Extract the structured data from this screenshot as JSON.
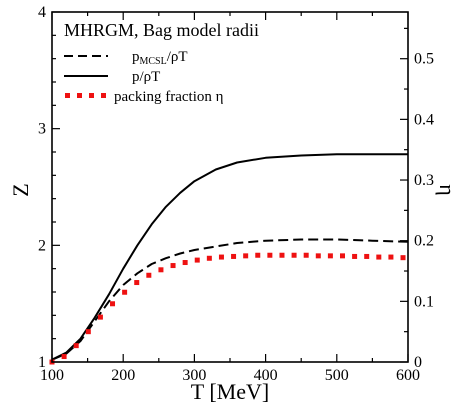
{
  "chart_data": {
    "type": "line",
    "title": "MHRGM, Bag model radii",
    "xlabel": "T [MeV]",
    "ylabel": "Z",
    "y2label": "η",
    "xlim": [
      100,
      600
    ],
    "ylim": [
      1,
      4
    ],
    "y2lim": [
      0,
      0.577
    ],
    "xticks": [
      "100",
      "200",
      "300",
      "400",
      "500",
      "600"
    ],
    "yticks": [
      "1",
      "2",
      "3",
      "4"
    ],
    "y2ticks": [
      "0",
      "0.1",
      "0.2",
      "0.3",
      "0.4",
      "0.5"
    ],
    "legend_position": "top-left",
    "series": [
      {
        "name": "p_MCSL/ρT",
        "name_main": "p",
        "name_sub": "MCSL",
        "name_rest": "/ρT",
        "style": "dashed",
        "color": "#000000",
        "axis": "left",
        "x": [
          100,
          120,
          140,
          160,
          180,
          200,
          220,
          240,
          260,
          280,
          300,
          330,
          360,
          400,
          450,
          500,
          550,
          600
        ],
        "y": [
          1.02,
          1.07,
          1.18,
          1.35,
          1.52,
          1.66,
          1.76,
          1.84,
          1.89,
          1.93,
          1.96,
          1.99,
          2.02,
          2.04,
          2.05,
          2.05,
          2.04,
          2.03
        ]
      },
      {
        "name": "p/ρT",
        "style": "solid",
        "color": "#000000",
        "axis": "left",
        "x": [
          100,
          120,
          140,
          160,
          180,
          200,
          220,
          240,
          260,
          280,
          300,
          330,
          360,
          400,
          450,
          500,
          550,
          600
        ],
        "y": [
          1.02,
          1.08,
          1.2,
          1.38,
          1.58,
          1.8,
          2.0,
          2.18,
          2.33,
          2.45,
          2.55,
          2.65,
          2.71,
          2.75,
          2.77,
          2.78,
          2.78,
          2.78
        ]
      },
      {
        "name": "packing fraction η",
        "style": "dotted",
        "color": "#ee1111",
        "axis": "right",
        "x": [
          100,
          117,
          134,
          151,
          168,
          185,
          202,
          219,
          236,
          253,
          270,
          287,
          304,
          321,
          338,
          355,
          372,
          389,
          406,
          423,
          440,
          457,
          474,
          491,
          508,
          525,
          542,
          559,
          576,
          593
        ],
        "y": [
          0.0,
          0.009,
          0.027,
          0.05,
          0.074,
          0.096,
          0.115,
          0.131,
          0.143,
          0.152,
          0.159,
          0.164,
          0.168,
          0.171,
          0.173,
          0.174,
          0.175,
          0.176,
          0.176,
          0.176,
          0.176,
          0.176,
          0.175,
          0.175,
          0.175,
          0.174,
          0.174,
          0.173,
          0.173,
          0.172
        ]
      }
    ]
  }
}
